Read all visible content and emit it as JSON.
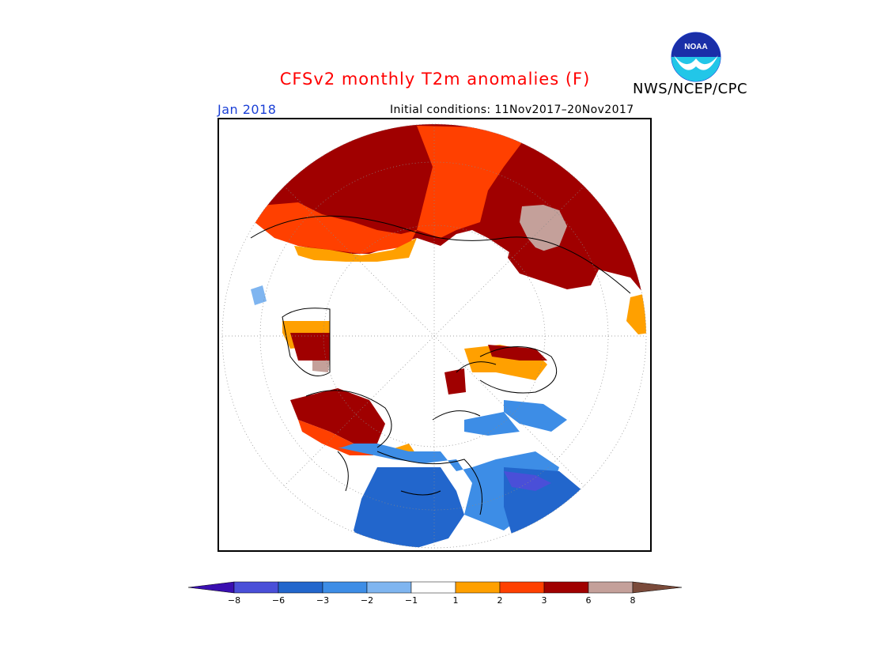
{
  "title": "CFSv2 monthly T2m anomalies (F)",
  "agency": "NWS/NCEP/CPC",
  "logo_text": "NOAA",
  "month": "Jan 2018",
  "initial_conditions": "Initial conditions: 11Nov2017–20Nov2017",
  "colorbar": {
    "colors": [
      "#3a0fb0",
      "#4a4fd8",
      "#2266cc",
      "#3d8de6",
      "#7fb5f0",
      "#ffffff",
      "#ffa000",
      "#ff4000",
      "#a00000",
      "#c4a09a",
      "#7a4a3a"
    ],
    "tick_labels": [
      "−8",
      "−6",
      "−3",
      "−2",
      "−1",
      "1",
      "2",
      "3",
      "6",
      "8"
    ]
  }
}
